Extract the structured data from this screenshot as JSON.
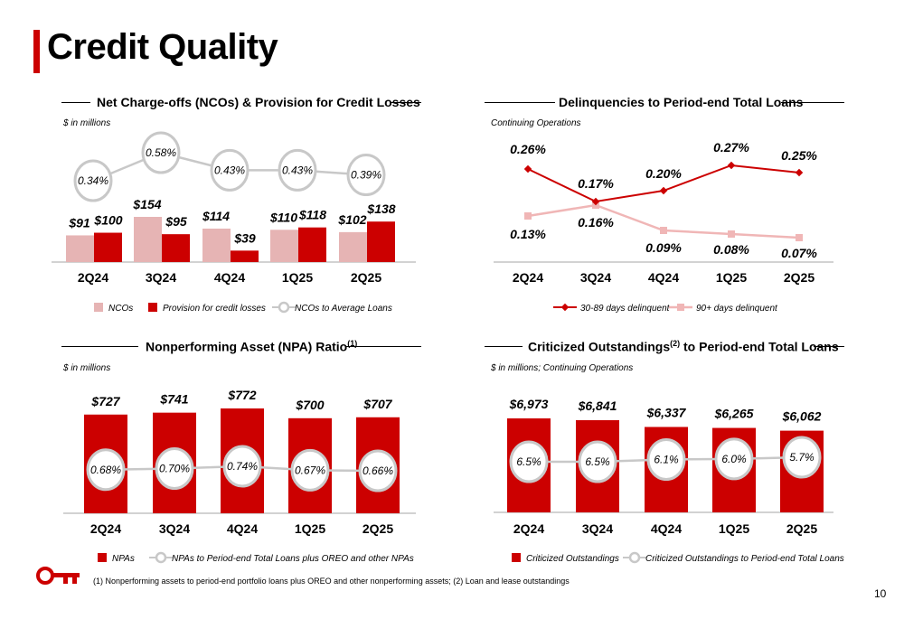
{
  "page": {
    "title": "Credit Quality",
    "page_number": "10",
    "footnote": "(1) Nonperforming assets to period-end portfolio loans plus OREO and other nonperforming assets; (2) Loan and lease outstandings"
  },
  "colors": {
    "red": "#cc0000",
    "pink": "#e6b4b4",
    "gray": "#c8c8c8",
    "light_pink": "#f0b6b6"
  },
  "chart_data": [
    {
      "type": "bar",
      "title": "Net Charge-offs (NCOs) & Provision for Credit Losses",
      "note": "$ in millions",
      "categories": [
        "2Q24",
        "3Q24",
        "4Q24",
        "1Q25",
        "2Q25"
      ],
      "series": [
        {
          "name": "NCOs",
          "values": [
            91,
            154,
            114,
            110,
            102
          ],
          "labels": [
            "$91",
            "$154",
            "$114",
            "$110",
            "$102"
          ]
        },
        {
          "name": "Provision for credit losses",
          "values": [
            100,
            95,
            39,
            118,
            138
          ],
          "labels": [
            "$100",
            "$95",
            "$39",
            "$118",
            "$138"
          ]
        },
        {
          "name": "NCOs to Average Loans",
          "values": [
            0.34,
            0.58,
            0.43,
            0.43,
            0.39
          ],
          "labels": [
            "0.34%",
            "0.58%",
            "0.43%",
            "0.43%",
            "0.39%"
          ]
        }
      ]
    },
    {
      "type": "line",
      "title": "Delinquencies to Period-end Total Loans",
      "note": "Continuing Operations",
      "categories": [
        "2Q24",
        "3Q24",
        "4Q24",
        "1Q25",
        "2Q25"
      ],
      "series": [
        {
          "name": "30-89 days delinquent",
          "values": [
            0.26,
            0.17,
            0.2,
            0.27,
            0.25
          ],
          "labels": [
            "0.26%",
            "0.17%",
            "0.20%",
            "0.27%",
            "0.25%"
          ]
        },
        {
          "name": "90+ days delinquent",
          "values": [
            0.13,
            0.16,
            0.09,
            0.08,
            0.07
          ],
          "labels": [
            "0.13%",
            "0.16%",
            "0.09%",
            "0.08%",
            "0.07%"
          ]
        }
      ]
    },
    {
      "type": "bar",
      "title": "Nonperforming Asset (NPA) Ratio",
      "title_sup": "(1)",
      "note": "$ in millions",
      "categories": [
        "2Q24",
        "3Q24",
        "4Q24",
        "1Q25",
        "2Q25"
      ],
      "series": [
        {
          "name": "NPAs",
          "values": [
            727,
            741,
            772,
            700,
            707
          ],
          "labels": [
            "$727",
            "$741",
            "$772",
            "$700",
            "$707"
          ]
        },
        {
          "name": "NPAs to Period-end Total Loans plus OREO and other NPAs",
          "values": [
            0.68,
            0.7,
            0.74,
            0.67,
            0.66
          ],
          "labels": [
            "0.68%",
            "0.70%",
            "0.74%",
            "0.67%",
            "0.66%"
          ]
        }
      ]
    },
    {
      "type": "bar",
      "title_a": "Criticized Outstandings",
      "title_sup": "(2)",
      "title_b": " to Period-end Total Loans",
      "note": "$ in millions; Continuing Operations",
      "categories": [
        "2Q24",
        "3Q24",
        "4Q24",
        "1Q25",
        "2Q25"
      ],
      "series": [
        {
          "name": "Criticized Outstandings",
          "values": [
            6973,
            6841,
            6337,
            6265,
            6062
          ],
          "labels": [
            "$6,973",
            "$6,841",
            "$6,337",
            "$6,265",
            "$6,062"
          ]
        },
        {
          "name": "Criticized Outstandings to Period-end Total Loans",
          "values": [
            6.5,
            6.5,
            6.1,
            6.0,
            5.7
          ],
          "labels": [
            "6.5%",
            "6.5%",
            "6.1%",
            "6.0%",
            "5.7%"
          ]
        }
      ]
    }
  ]
}
